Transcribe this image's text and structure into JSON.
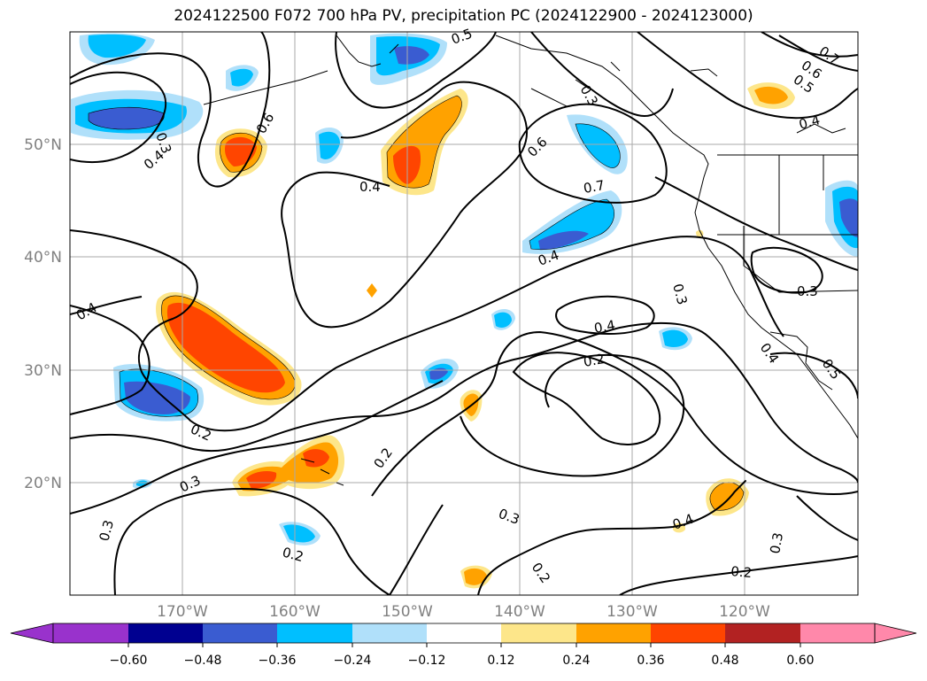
{
  "title": "2024122500 F072 700 hPa PV, precipitation PC (2024122900 - 2024123000)",
  "map": {
    "region": "North Pacific",
    "lon_range": [
      -180,
      -110
    ],
    "lat_range": [
      10,
      60
    ],
    "lat_labels": [
      "50°N",
      "40°N",
      "30°N",
      "20°N"
    ],
    "lon_labels": [
      "170°W",
      "160°W",
      "150°W",
      "140°W",
      "130°W",
      "120°W"
    ],
    "gridline_color": "#aaaaaa",
    "axis_label_color": "#808080"
  },
  "contour_labels": [
    {
      "id": "c1",
      "text": "0.5"
    },
    {
      "id": "c2",
      "text": "0.3"
    },
    {
      "id": "c3",
      "text": "0.6"
    },
    {
      "id": "c4",
      "text": "0.4"
    },
    {
      "id": "c5",
      "text": "0.3"
    },
    {
      "id": "c6",
      "text": "0.4"
    },
    {
      "id": "c7",
      "text": "0.6"
    },
    {
      "id": "c8",
      "text": "0.7"
    },
    {
      "id": "c9",
      "text": "0.4"
    },
    {
      "id": "c10",
      "text": "0.7"
    },
    {
      "id": "c11",
      "text": "0.6"
    },
    {
      "id": "c12",
      "text": "0.5"
    },
    {
      "id": "c13",
      "text": "0.4"
    },
    {
      "id": "c14",
      "text": "0.4"
    },
    {
      "id": "c15",
      "text": "0.3"
    },
    {
      "id": "c16",
      "text": "0.3"
    },
    {
      "id": "c17",
      "text": "0.4"
    },
    {
      "id": "c18",
      "text": "0.2"
    },
    {
      "id": "c19",
      "text": "0.2"
    },
    {
      "id": "c20",
      "text": "0.3"
    },
    {
      "id": "c21",
      "text": "0.2"
    },
    {
      "id": "c22",
      "text": "0.3"
    },
    {
      "id": "c23",
      "text": "0.2"
    },
    {
      "id": "c24",
      "text": "0.3"
    },
    {
      "id": "c25",
      "text": "0.2"
    },
    {
      "id": "c26",
      "text": "0.4"
    },
    {
      "id": "c27",
      "text": "0.3"
    },
    {
      "id": "c28",
      "text": "0.2"
    },
    {
      "id": "c29",
      "text": "0.4"
    },
    {
      "id": "c30",
      "text": "0.5"
    }
  ],
  "colorbar": {
    "tick_labels": [
      "−0.60",
      "−0.48",
      "−0.36",
      "−0.24",
      "−0.12",
      "0.12",
      "0.24",
      "0.36",
      "0.48",
      "0.60"
    ],
    "colors": {
      "under": "#9932cc",
      "b1": "#9932cc",
      "b2": "#000090",
      "b3": "#3a5cd1",
      "b4": "#00bfff",
      "b5": "#b0e0fa",
      "b6": "#ffffff",
      "b7": "#fde68a",
      "b8": "#ffa200",
      "b9": "#ff4500",
      "b10": "#b22222",
      "over": "#ff88aa"
    }
  }
}
